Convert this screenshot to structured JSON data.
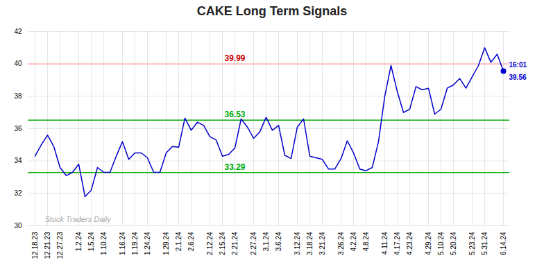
{
  "chart_data": {
    "type": "line",
    "title": "CAKE Long Term Signals",
    "categories": [
      "12.18.23",
      null,
      "12.21.23",
      null,
      "12.27.23",
      null,
      null,
      "1.2.24",
      null,
      "1.5.24",
      null,
      "1.10.24",
      null,
      null,
      "1.16.24",
      null,
      "1.19.24",
      null,
      "1.24.24",
      null,
      null,
      "1.29.24",
      null,
      "2.1.24",
      null,
      "2.6.24",
      null,
      null,
      "2.12.24",
      null,
      "2.15.24",
      null,
      "2.21.24",
      null,
      null,
      "2.27.24",
      null,
      "3.1.24",
      null,
      "3.6.24",
      null,
      null,
      "3.12.24",
      null,
      "3.18.24",
      null,
      "3.21.24",
      null,
      null,
      "3.26.24",
      null,
      "4.2.24",
      null,
      "4.8.24",
      null,
      null,
      "4.11.24",
      null,
      "4.17.24",
      null,
      "4.23.24",
      null,
      null,
      "4.29.24",
      null,
      "5.10.24",
      null,
      "5.20.24",
      null,
      null,
      "5.23.24",
      null,
      "5.31.24",
      null,
      null,
      "6.14.24"
    ],
    "values": [
      34.3,
      35.0,
      35.6,
      34.9,
      33.6,
      33.1,
      33.3,
      33.8,
      31.8,
      32.2,
      33.6,
      33.3,
      33.3,
      34.3,
      35.2,
      34.1,
      34.5,
      34.5,
      34.2,
      33.3,
      33.3,
      34.5,
      34.9,
      34.85,
      36.65,
      35.9,
      36.4,
      36.2,
      35.5,
      35.3,
      34.3,
      34.4,
      34.8,
      36.6,
      36.1,
      35.4,
      35.8,
      36.7,
      35.9,
      36.2,
      34.35,
      34.15,
      36.1,
      36.6,
      34.3,
      34.2,
      34.1,
      33.5,
      33.5,
      34.15,
      35.25,
      34.5,
      33.5,
      33.4,
      33.6,
      35.2,
      38.0,
      39.9,
      38.3,
      37.0,
      37.2,
      38.6,
      38.4,
      38.5,
      36.9,
      37.2,
      38.5,
      38.7,
      39.1,
      38.5,
      39.2,
      39.9,
      41.0,
      40.1,
      40.6,
      39.56
    ],
    "color": "#0000cc",
    "ylim": [
      30,
      42
    ],
    "yticks": [
      30,
      32,
      34,
      36,
      38,
      40,
      42
    ],
    "grid": true,
    "reference_lines": [
      {
        "value": 40.0,
        "label": "39.99",
        "color": "#ffaaaa",
        "label_color": "#cc0000"
      },
      {
        "value": 36.53,
        "label": "36.53",
        "color": "#00aa00",
        "label_color": "#00aa00"
      },
      {
        "value": 33.29,
        "label": "33.29",
        "color": "#00aa00",
        "label_color": "#00aa00"
      }
    ],
    "last_point": {
      "label": "16:01",
      "color": "#0000cc"
    },
    "watermark": {
      "text": "Stock Traders Daily",
      "color": "#aaaaaa"
    }
  }
}
